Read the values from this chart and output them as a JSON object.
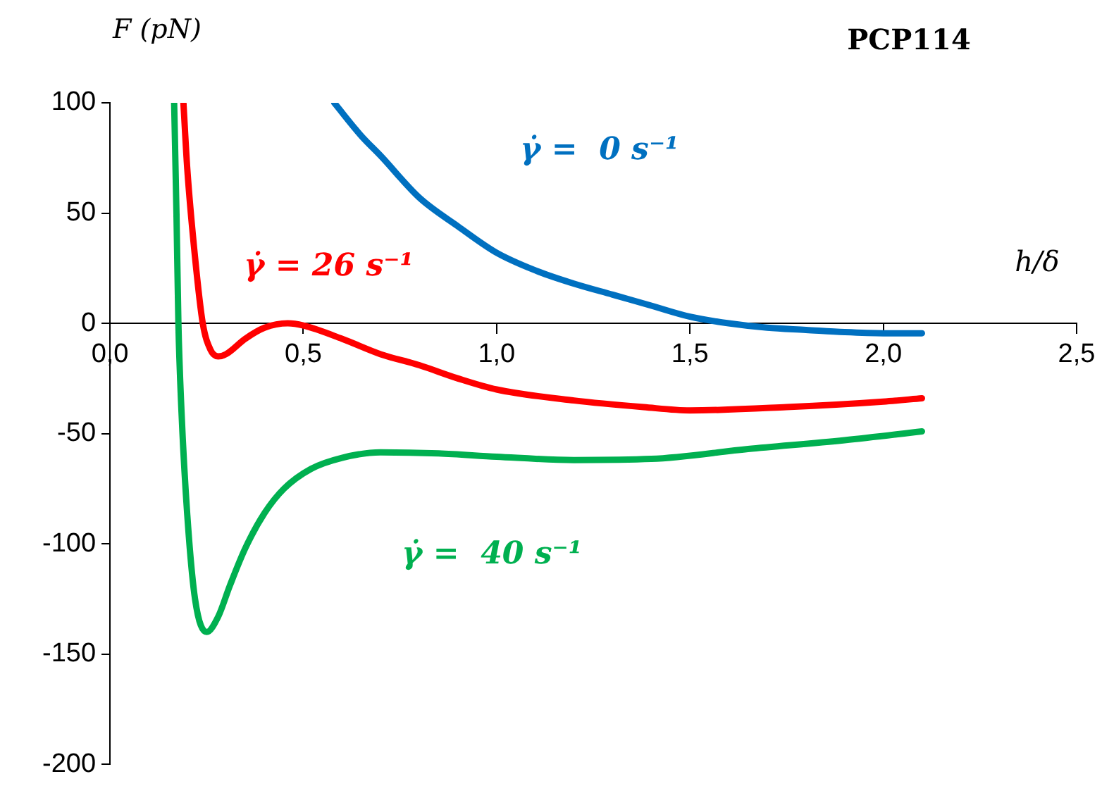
{
  "chart_data": {
    "type": "line",
    "title": "PCP114",
    "xlabel": "h/δ",
    "ylabel": "F (pN)",
    "xlim": [
      0,
      2.5
    ],
    "ylim": [
      -200,
      100
    ],
    "xticks": [
      {
        "value": 0,
        "label": "0,0"
      },
      {
        "value": 0.5,
        "label": "0,5"
      },
      {
        "value": 1,
        "label": "1,0"
      },
      {
        "value": 1.5,
        "label": "1,5"
      },
      {
        "value": 2,
        "label": "2,0"
      },
      {
        "value": 2.5,
        "label": "2,5"
      }
    ],
    "yticks": [
      -200,
      -150,
      -100,
      -50,
      0,
      50,
      100
    ],
    "grid": false,
    "legend": false,
    "marker": "none",
    "line_style": "solid",
    "series": [
      {
        "name": "γ̇ =  0 s⁻¹",
        "color": "#0070c0",
        "x": [
          0.58,
          0.65,
          0.7,
          0.8,
          0.9,
          1.0,
          1.1,
          1.2,
          1.3,
          1.4,
          1.5,
          1.6,
          1.7,
          1.8,
          1.9,
          2.0,
          2.1
        ],
        "values": [
          100,
          85,
          76,
          57,
          44,
          32,
          24,
          18,
          13,
          8,
          3,
          0,
          -2,
          -3,
          -4,
          -4.5,
          -4.5
        ]
      },
      {
        "name": "γ̇ = 26 s⁻¹",
        "color": "#ff0000",
        "x": [
          0.19,
          0.2,
          0.22,
          0.24,
          0.26,
          0.28,
          0.3,
          0.35,
          0.4,
          0.46,
          0.5,
          0.6,
          0.7,
          0.8,
          0.9,
          1.0,
          1.2,
          1.38,
          1.5,
          1.75,
          2.0,
          2.1
        ],
        "values": [
          100,
          70,
          30,
          0,
          -12,
          -15,
          -14,
          -7,
          -2,
          0,
          -1,
          -7,
          -14,
          -19,
          -25,
          -30,
          -35,
          -38,
          -39.5,
          -38,
          -35.5,
          -34
        ]
      },
      {
        "name": "γ̇ =  40 s⁻¹",
        "color": "#00b050",
        "x": [
          0.166,
          0.172,
          0.177,
          0.185,
          0.2,
          0.22,
          0.25,
          0.28,
          0.31,
          0.35,
          0.4,
          0.45,
          0.52,
          0.6,
          0.7,
          0.85,
          1.0,
          1.2,
          1.4,
          1.65,
          1.9,
          2.1
        ],
        "values": [
          100,
          50,
          0,
          -40,
          -87,
          -125,
          -140,
          -133,
          -119,
          -102,
          -86,
          -75,
          -66,
          -61,
          -58.5,
          -59,
          -60.5,
          -62,
          -61.5,
          -57,
          -53,
          -49
        ]
      }
    ]
  }
}
